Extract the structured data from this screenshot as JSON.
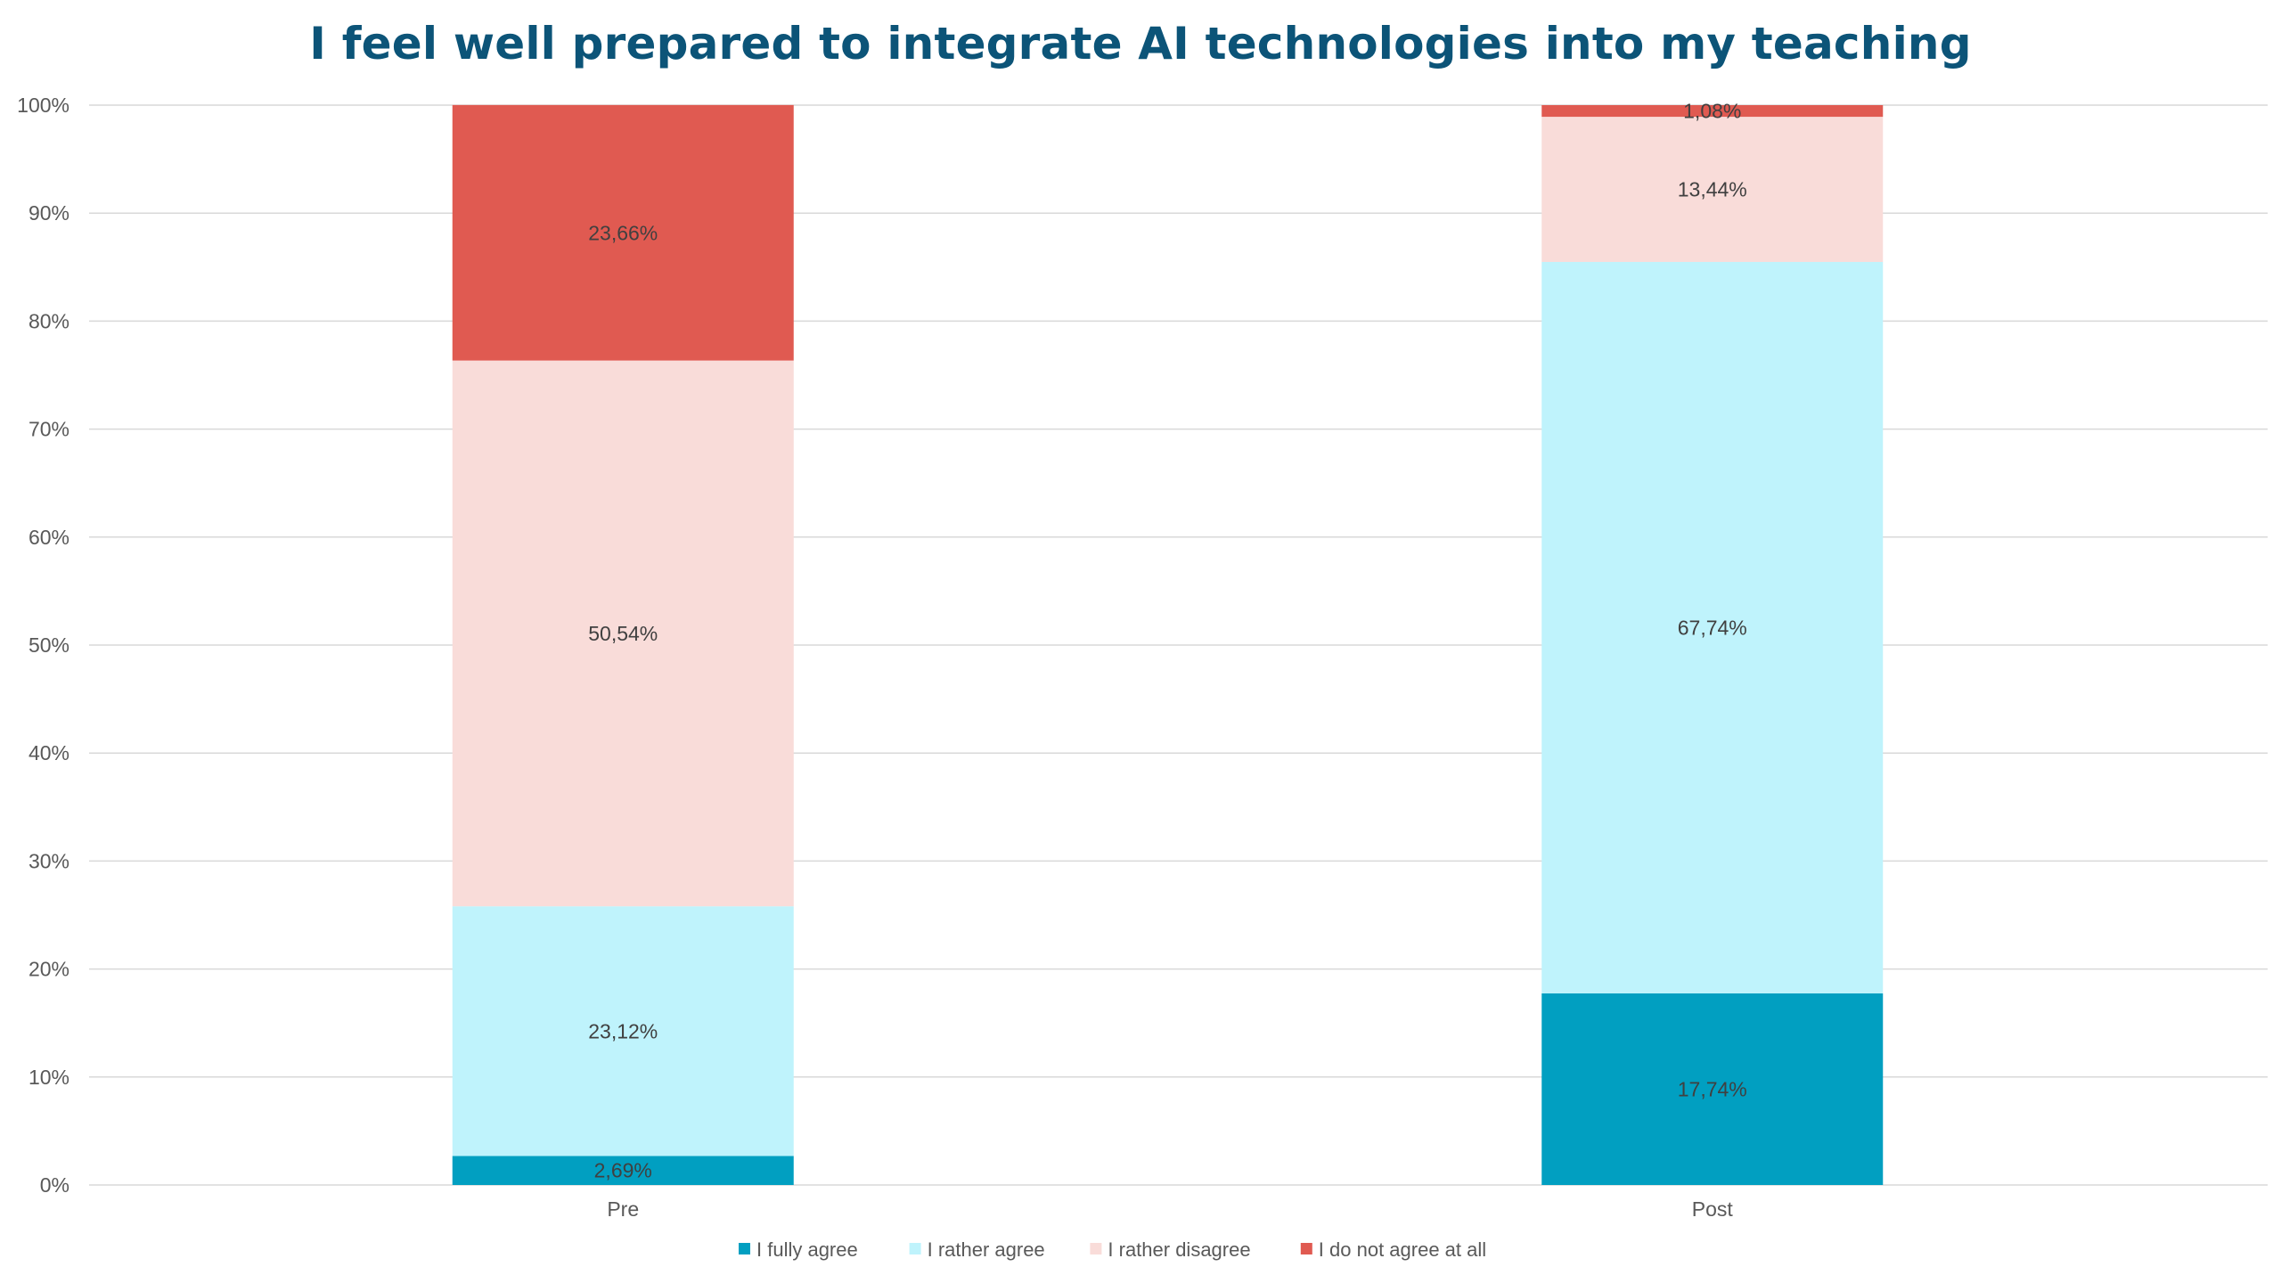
{
  "chart_data": {
    "type": "bar",
    "stacked": true,
    "title": "I feel well prepared to integrate AI technologies into my teaching",
    "xlabel": "",
    "ylabel": "",
    "ylim": [
      0,
      100
    ],
    "y_ticks": [
      "0%",
      "10%",
      "20%",
      "30%",
      "40%",
      "50%",
      "60%",
      "70%",
      "80%",
      "90%",
      "100%"
    ],
    "grid": true,
    "legend_position": "bottom",
    "categories": [
      "Pre",
      "Post"
    ],
    "series": [
      {
        "name": "I fully agree",
        "color": "#019fc1",
        "values": [
          2.69,
          17.74
        ],
        "labels": [
          "2,69%",
          "17,74%"
        ]
      },
      {
        "name": "I rather agree",
        "color": "#bff3fc",
        "values": [
          23.12,
          67.74
        ],
        "labels": [
          "23,12%",
          "67,74%"
        ]
      },
      {
        "name": "I rather disagree",
        "color": "#f9dcd9",
        "values": [
          50.54,
          13.44
        ],
        "labels": [
          "50,54%",
          "13,44%"
        ]
      },
      {
        "name": "I do not agree at all",
        "color": "#e05a51",
        "values": [
          23.66,
          1.08
        ],
        "labels": [
          "23,66%",
          "1,08%"
        ]
      }
    ]
  }
}
